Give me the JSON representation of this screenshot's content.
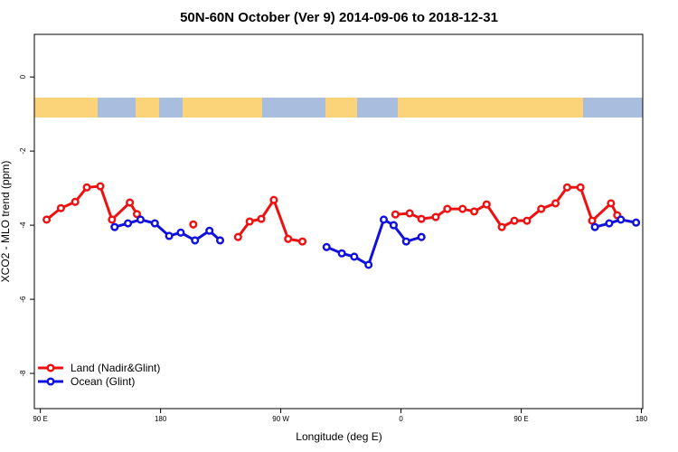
{
  "chart_data": {
    "type": "line",
    "title": "50N-60N October (Ver 9)   2014-09-06 to 2018-12-31",
    "x_label": "Longitude (deg E)",
    "y_label": "XCO2 - MLO trend (ppm)",
    "xlim": [
      85.5,
      541
    ],
    "ylim": [
      -8.95,
      1.15
    ],
    "xticks": [
      {
        "value": 90,
        "label": "90 E"
      },
      {
        "value": 180,
        "label": "180"
      },
      {
        "value": 270,
        "label": "90 W"
      },
      {
        "value": 360,
        "label": "0"
      },
      {
        "value": 450,
        "label": "90 E"
      },
      {
        "value": 540,
        "label": "180"
      }
    ],
    "yticks": [
      0,
      -2,
      -4,
      -6,
      -8
    ],
    "legend": "bottomleft",
    "series": [
      {
        "name": "Land (Nadir&Glint)",
        "color": "#ee1111",
        "x": [
          94.7,
          105.4,
          116.1,
          124.8,
          134.9,
          143.6,
          157.0,
          162.3,
          null,
          204.5,
          null,
          238.0,
          246.7,
          255.4,
          264.8,
          275.5,
          286.2,
          null,
          355.8,
          366.5,
          375.3,
          386.0,
          394.7,
          406.1,
          414.8,
          424.1,
          435.5,
          444.9,
          454.3,
          465.0,
          475.7,
          484.4,
          494.4,
          503.1,
          517.2,
          521.9
        ],
        "values": [
          -3.85,
          -3.54,
          -3.37,
          -2.98,
          -2.95,
          -3.85,
          -3.39,
          -3.7,
          null,
          -3.98,
          null,
          -4.32,
          -3.9,
          -3.83,
          -3.32,
          -4.37,
          -4.44,
          null,
          -3.71,
          -3.68,
          -3.83,
          -3.78,
          -3.56,
          -3.56,
          -3.63,
          -3.44,
          -4.05,
          -3.88,
          -3.88,
          -3.56,
          -3.41,
          -2.98,
          -2.98,
          -3.88,
          -3.41,
          -3.73
        ]
      },
      {
        "name": "Ocean (Glint)",
        "color": "#1111dd",
        "x": [
          145.6,
          155.6,
          165.0,
          175.7,
          186.4,
          195.1,
          205.8,
          216.6,
          224.6,
          null,
          304.3,
          315.7,
          325.0,
          335.7,
          347.1,
          354.5,
          363.9,
          375.3,
          null,
          505.2,
          515.9,
          524.6,
          536.0
        ],
        "values": [
          -4.05,
          -3.95,
          -3.85,
          -3.95,
          -4.29,
          -4.2,
          -4.41,
          -4.15,
          -4.41,
          null,
          -4.59,
          -4.76,
          -4.85,
          -5.07,
          -3.85,
          -4.0,
          -4.44,
          -4.32,
          null,
          -4.05,
          -3.95,
          -3.85,
          -3.93
        ]
      }
    ]
  }
}
